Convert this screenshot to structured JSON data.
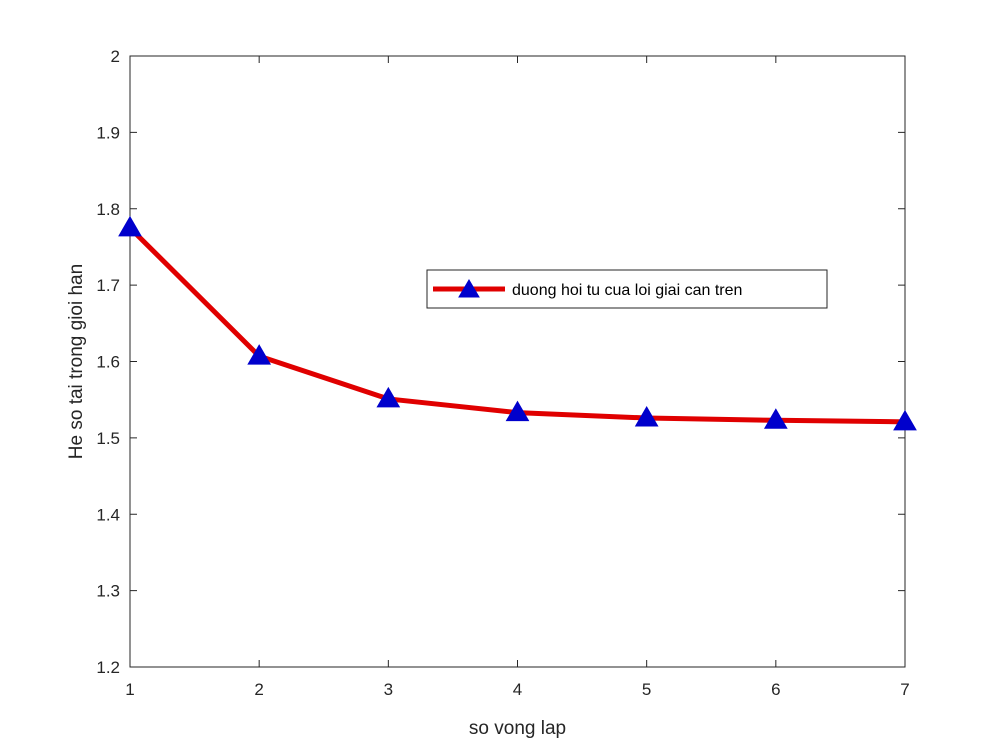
{
  "chart_data": {
    "type": "line",
    "title": "",
    "xlabel": "so vong lap",
    "ylabel": "He so tai trong gioi han",
    "xlim": [
      1,
      7
    ],
    "ylim": [
      1.2,
      2
    ],
    "xticks": [
      1,
      2,
      3,
      4,
      5,
      6,
      7
    ],
    "xtick_labels": [
      "1",
      "2",
      "3",
      "4",
      "5",
      "6",
      "7"
    ],
    "yticks": [
      1.2,
      1.3,
      1.4,
      1.5,
      1.6,
      1.7,
      1.8,
      1.9,
      2.0
    ],
    "ytick_labels": [
      "1.2",
      "1.3",
      "1.4",
      "1.5",
      "1.6",
      "1.7",
      "1.8",
      "1.9",
      "2"
    ],
    "grid": false,
    "legend_position": "center-right",
    "series": [
      {
        "name": "duong hoi tu cua loi giai can tren",
        "x": [
          1,
          2,
          3,
          4,
          5,
          6,
          7
        ],
        "y": [
          1.775,
          1.607,
          1.551,
          1.533,
          1.526,
          1.523,
          1.521
        ],
        "line_color": "#e00000",
        "marker": "triangle-up",
        "marker_color": "#0000cc"
      }
    ]
  }
}
